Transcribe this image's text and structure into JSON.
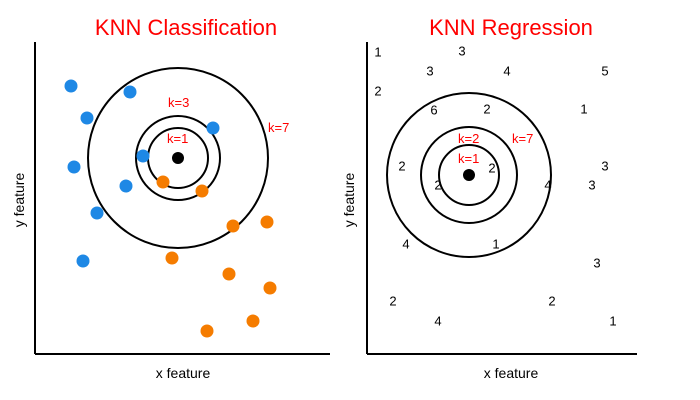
{
  "colors": {
    "title": "#ff0000",
    "class_a": "#1e88e5",
    "class_b": "#f57c00",
    "query": "#000000",
    "k_label": "#ff0000"
  },
  "classification": {
    "title": "KNN Classification",
    "x_label": "x feature",
    "y_label": "y feature",
    "k_labels": [
      "k=1",
      "k=3",
      "k=7"
    ]
  },
  "regression": {
    "title": "KNN Regression",
    "x_label": "x feature",
    "y_label": "y feature",
    "k_labels": [
      "k=1",
      "k=2",
      "k=7"
    ],
    "values": [
      "1",
      "3",
      "3",
      "4",
      "5",
      "2",
      "6",
      "2",
      "1",
      "2",
      "2",
      "3",
      "3",
      "2",
      "4",
      "4",
      "1",
      "3",
      "2",
      "2",
      "4",
      "1"
    ]
  }
}
